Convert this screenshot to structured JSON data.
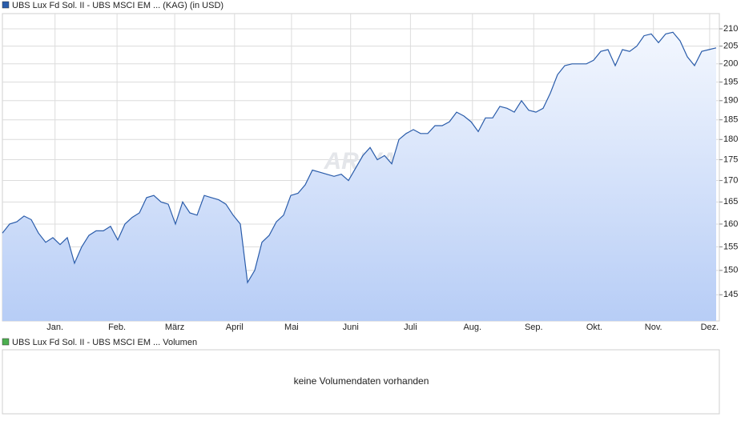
{
  "chart_data": {
    "type": "line",
    "legend": "UBS Lux Fd Sol. II - UBS MSCI EM ... (KAG) (in USD)",
    "watermark": "ARIVA",
    "log_scale": true,
    "grid": true,
    "series": [
      {
        "name": "UBS Lux Fd Sol. II - UBS MSCI EM ...",
        "color": "#2a5caa",
        "values": [
          158,
          160,
          160.5,
          161.8,
          161,
          158,
          156,
          157,
          155.5,
          157,
          151.5,
          155,
          157.5,
          158.5,
          158.5,
          159.5,
          156.5,
          160,
          161.5,
          162.5,
          166,
          166.5,
          165,
          164.5,
          160,
          165,
          162.5,
          162,
          166.5,
          166,
          165.5,
          164.5,
          162,
          160,
          147.5,
          150,
          156,
          157.5,
          160.5,
          162,
          166.5,
          167,
          169,
          172.5,
          172,
          171.5,
          171,
          171.5,
          170,
          173,
          176,
          178,
          175,
          176,
          174,
          180,
          181.5,
          182.5,
          181.5,
          181.5,
          183.5,
          183.5,
          184.5,
          187,
          186,
          184.5,
          182,
          185.5,
          185.5,
          188.5,
          188,
          187,
          190,
          187.5,
          187,
          188,
          192,
          197,
          199.5,
          200,
          200,
          200,
          201,
          203.5,
          204,
          199.5,
          204,
          203.5,
          205,
          208,
          208.5,
          206,
          208.5,
          209,
          206.5,
          202,
          199.5,
          203.5,
          204,
          204.5
        ]
      }
    ],
    "xlim": [
      0,
      99
    ],
    "xticks": [
      {
        "value": 7.3,
        "label": "Jan."
      },
      {
        "value": 15.9,
        "label": "Feb."
      },
      {
        "value": 23.9,
        "label": "März"
      },
      {
        "value": 32.2,
        "label": "April"
      },
      {
        "value": 40.1,
        "label": "Mai"
      },
      {
        "value": 48.3,
        "label": "Juni"
      },
      {
        "value": 56.6,
        "label": "Juli"
      },
      {
        "value": 65.2,
        "label": "Aug."
      },
      {
        "value": 73.7,
        "label": "Sep."
      },
      {
        "value": 82.1,
        "label": "Okt."
      },
      {
        "value": 90.3,
        "label": "Nov."
      },
      {
        "value": 98.1,
        "label": "Dez."
      }
    ],
    "ylim": [
      139.8,
      214.5
    ],
    "yticks": [
      145,
      150,
      155,
      160,
      165,
      170,
      175,
      180,
      185,
      190,
      195,
      200,
      205,
      210
    ],
    "volume_legend": "UBS Lux Fd Sol. II - UBS MSCI EM ... Volumen",
    "volume_legend_color": "#4caf50",
    "volume_message": "keine Volumendaten vorhanden"
  }
}
